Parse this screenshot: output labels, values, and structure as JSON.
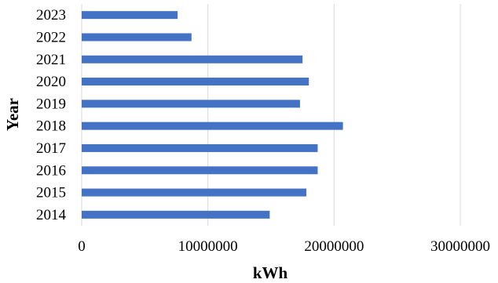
{
  "chart_data": {
    "type": "bar",
    "orientation": "horizontal",
    "categories": [
      "2014",
      "2015",
      "2016",
      "2017",
      "2018",
      "2019",
      "2020",
      "2021",
      "2022",
      "2023"
    ],
    "values": [
      14900000,
      17800000,
      18700000,
      18700000,
      20700000,
      17300000,
      18000000,
      17500000,
      8700000,
      7600000
    ],
    "xlabel": "kWh",
    "ylabel": "Year",
    "xlim": [
      0,
      30000000
    ],
    "x_ticks": [
      "0",
      "10000000",
      "20000000",
      "30000000"
    ],
    "grid": true,
    "bar_color": "#4472c4",
    "grid_color": "#d9d9d9"
  }
}
